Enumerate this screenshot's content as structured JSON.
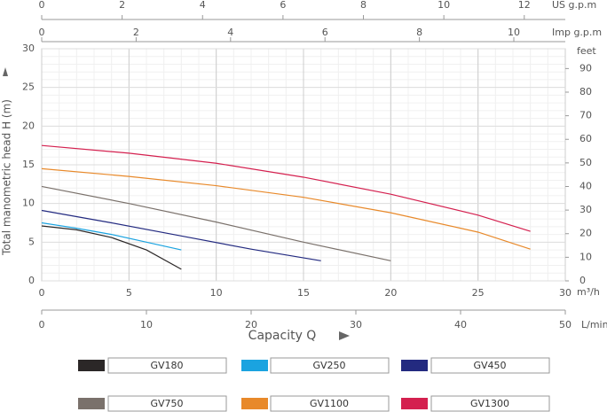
{
  "chart_data": {
    "type": "line",
    "x_label": "Capacity  Q",
    "y_label": "Total  manometric  head  H  (m)",
    "x_unit": "m³/h",
    "xlim": [
      0,
      30
    ],
    "xticks": [
      0,
      5,
      10,
      15,
      20,
      25,
      30
    ],
    "ylim": [
      0,
      30
    ],
    "yticks": [
      0,
      5,
      10,
      15,
      20,
      25,
      30
    ],
    "grid": true,
    "y2label": "feet",
    "y2lim": [
      0,
      98.4
    ],
    "y2ticks": [
      0,
      10,
      20,
      30,
      40,
      50,
      60,
      70,
      80,
      90
    ],
    "x_axes": [
      {
        "label": "US g.p.m",
        "lim": [
          0,
          13.02
        ],
        "ticks": [
          0,
          2,
          4,
          6,
          8,
          10,
          12
        ]
      },
      {
        "label": "Imp g.p.m",
        "lim": [
          0,
          11.09
        ],
        "ticks": [
          0,
          2,
          4,
          6,
          8,
          10
        ]
      },
      {
        "label": "L/min",
        "lim": [
          0,
          50
        ],
        "ticks": [
          0,
          10,
          20,
          30,
          40,
          50
        ]
      }
    ],
    "series": [
      {
        "name": "GV180",
        "color": "#2b2727",
        "x": [
          0,
          2,
          4,
          6,
          8
        ],
        "values": [
          7.1,
          6.6,
          5.6,
          4.0,
          1.5
        ]
      },
      {
        "name": "GV250",
        "color": "#1aa3e0",
        "x": [
          0,
          2,
          4,
          6,
          8
        ],
        "values": [
          7.5,
          6.8,
          6.0,
          5.0,
          4.0
        ]
      },
      {
        "name": "GV450",
        "color": "#232a80",
        "x": [
          0,
          4,
          8,
          12,
          16
        ],
        "values": [
          9.1,
          7.5,
          5.8,
          4.1,
          2.6
        ]
      },
      {
        "name": "GV750",
        "color": "#7a716b",
        "x": [
          0,
          5,
          10,
          15,
          20
        ],
        "values": [
          12.2,
          10.0,
          7.6,
          5.0,
          2.6
        ]
      },
      {
        "name": "GV1100",
        "color": "#e8892a",
        "x": [
          0,
          5,
          10,
          15,
          20,
          25,
          28
        ],
        "values": [
          14.5,
          13.5,
          12.3,
          10.8,
          8.8,
          6.3,
          4.1
        ]
      },
      {
        "name": "GV1300",
        "color": "#d4204f",
        "x": [
          0,
          5,
          10,
          15,
          20,
          25,
          28
        ],
        "values": [
          17.5,
          16.5,
          15.2,
          13.4,
          11.2,
          8.5,
          6.4
        ]
      }
    ]
  }
}
